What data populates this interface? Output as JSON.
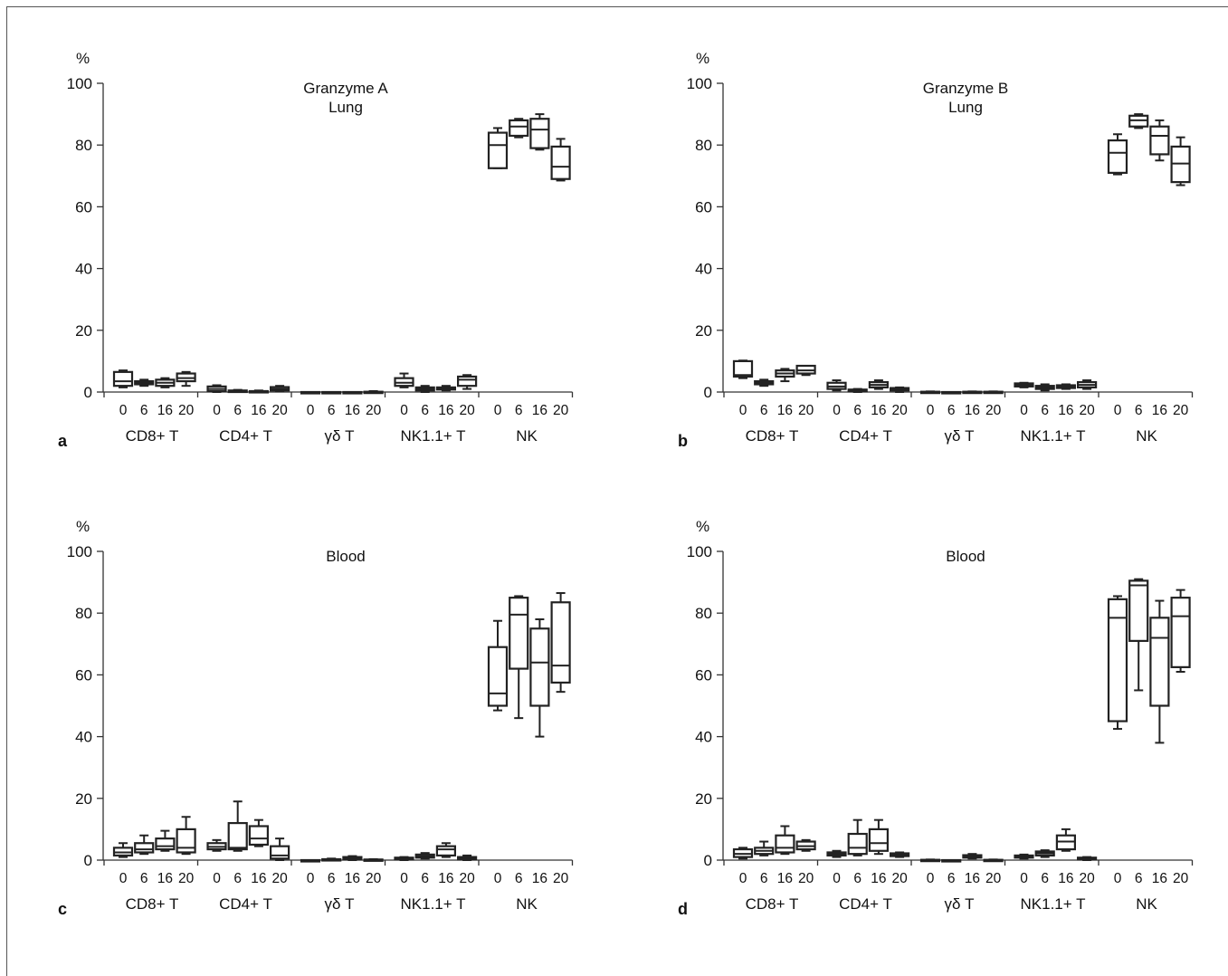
{
  "chart_data": [
    {
      "type": "box",
      "panel_letter": "a",
      "title": "Granzyme A\nLung",
      "ylabel": "%",
      "ylim": [
        0,
        100
      ],
      "yticks": [
        0,
        20,
        40,
        60,
        80,
        100
      ],
      "time_labels": [
        "0",
        "6",
        "16",
        "20"
      ],
      "groups": [
        "CD8+ T",
        "CD4+ T",
        "γδ T",
        "NK1.1+ T",
        "NK"
      ],
      "boxes": [
        [
          [
            1.5,
            2,
            3.5,
            6.5,
            7
          ],
          [
            2,
            2.5,
            3,
            3.5,
            4
          ],
          [
            1.5,
            2,
            3,
            4,
            4.5
          ],
          [
            2,
            3.5,
            4.5,
            6,
            6.5
          ]
        ],
        [
          [
            0,
            0.3,
            1,
            1.8,
            2.2
          ],
          [
            0,
            0,
            0.2,
            0.5,
            0.7
          ],
          [
            0,
            0,
            0.1,
            0.3,
            0.5
          ],
          [
            0.2,
            0.5,
            1,
            1.6,
            2
          ]
        ],
        [
          [
            0,
            0,
            0,
            0,
            0
          ],
          [
            0,
            0,
            0,
            0,
            0
          ],
          [
            0,
            0,
            0,
            0,
            0
          ],
          [
            0,
            0,
            0,
            0.1,
            0.3
          ]
        ],
        [
          [
            1.5,
            2,
            3,
            4.5,
            6
          ],
          [
            0,
            0.5,
            1,
            1.5,
            2
          ],
          [
            0.5,
            0.8,
            1.2,
            1.5,
            2
          ],
          [
            1,
            2,
            4,
            5,
            5.5
          ]
        ],
        [
          [
            72.5,
            72.5,
            80,
            84,
            85.5
          ],
          [
            82.5,
            83,
            86,
            88,
            88.5
          ],
          [
            78.5,
            79,
            85,
            88.5,
            90
          ],
          [
            68.5,
            69,
            73,
            79.5,
            82
          ]
        ]
      ]
    },
    {
      "type": "box",
      "panel_letter": "b",
      "title": "Granzyme B\nLung",
      "ylabel": "%",
      "ylim": [
        0,
        100
      ],
      "yticks": [
        0,
        20,
        40,
        60,
        80,
        100
      ],
      "time_labels": [
        "0",
        "6",
        "16",
        "20"
      ],
      "groups": [
        "CD8+ T",
        "CD4+ T",
        "γδ T",
        "NK1.1+ T",
        "NK"
      ],
      "boxes": [
        [
          [
            4.5,
            5,
            5.5,
            10,
            10.2
          ],
          [
            2,
            2.5,
            3,
            3.5,
            4
          ],
          [
            3.5,
            5,
            6,
            7,
            7.5
          ],
          [
            5.5,
            6,
            7,
            8.5,
            8.5
          ]
        ],
        [
          [
            0.5,
            1,
            1.8,
            3,
            3.8
          ],
          [
            0,
            0.2,
            0.5,
            0.8,
            1
          ],
          [
            1,
            1.5,
            2.3,
            3.2,
            3.8
          ],
          [
            0,
            0.5,
            1,
            1.3,
            1.5
          ]
        ],
        [
          [
            0,
            0,
            0,
            0.1,
            0.2
          ],
          [
            0,
            0,
            0,
            0,
            0
          ],
          [
            0,
            0,
            0,
            0.1,
            0.2
          ],
          [
            0,
            0,
            0,
            0.1,
            0.2
          ]
        ],
        [
          [
            1.5,
            1.8,
            2.3,
            2.8,
            3
          ],
          [
            0.5,
            1,
            1.5,
            2,
            2.5
          ],
          [
            1,
            1.3,
            1.8,
            2.2,
            2.5
          ],
          [
            1,
            1.5,
            2.3,
            3.2,
            3.8
          ]
        ],
        [
          [
            70.5,
            71,
            77.5,
            81.5,
            83.5
          ],
          [
            85.5,
            86,
            88,
            89.5,
            90
          ],
          [
            75,
            77,
            83,
            86,
            88
          ],
          [
            67,
            68,
            74,
            79.5,
            82.5
          ]
        ]
      ]
    },
    {
      "type": "box",
      "panel_letter": "c",
      "title": "Blood",
      "ylabel": "%",
      "ylim": [
        0,
        100
      ],
      "yticks": [
        0,
        20,
        40,
        60,
        80,
        100
      ],
      "time_labels": [
        "0",
        "6",
        "16",
        "20"
      ],
      "groups": [
        "CD8+ T",
        "CD4+ T",
        "γδ T",
        "NK1.1+ T",
        "NK"
      ],
      "boxes": [
        [
          [
            1,
            1.5,
            2.5,
            4,
            5.5
          ],
          [
            2,
            2.5,
            3.5,
            5.5,
            8
          ],
          [
            3,
            3.5,
            4.5,
            7,
            9.5
          ],
          [
            2,
            2.5,
            4,
            10,
            14
          ]
        ],
        [
          [
            3,
            3.5,
            4.3,
            5.5,
            6.5
          ],
          [
            3,
            3.5,
            4,
            12,
            19
          ],
          [
            4.5,
            5,
            7,
            11,
            13
          ],
          [
            0,
            0.5,
            1.5,
            4.5,
            7
          ]
        ],
        [
          [
            0,
            0,
            0,
            0,
            0
          ],
          [
            0,
            0,
            0.1,
            0.3,
            0.5
          ],
          [
            0,
            0.2,
            0.5,
            1,
            1.3
          ],
          [
            0,
            0,
            0.1,
            0.2,
            0.3
          ]
        ],
        [
          [
            0,
            0.2,
            0.5,
            0.8,
            1
          ],
          [
            0.5,
            0.8,
            1.2,
            1.8,
            2.3
          ],
          [
            1,
            1.5,
            3.5,
            4.5,
            5.5
          ],
          [
            0,
            0.2,
            0.5,
            1,
            1.5
          ]
        ],
        [
          [
            48.5,
            50,
            54,
            69,
            77.5
          ],
          [
            46,
            62,
            79.5,
            85,
            85.5
          ],
          [
            40,
            50,
            64,
            75,
            78
          ],
          [
            54.5,
            57.5,
            63,
            83.5,
            86.5
          ]
        ]
      ]
    },
    {
      "type": "box",
      "panel_letter": "d",
      "title": "Blood",
      "ylabel": "%",
      "ylim": [
        0,
        100
      ],
      "yticks": [
        0,
        20,
        40,
        60,
        80,
        100
      ],
      "time_labels": [
        "0",
        "6",
        "16",
        "20"
      ],
      "groups": [
        "CD8+ T",
        "CD4+ T",
        "γδ T",
        "NK1.1+ T",
        "NK"
      ],
      "boxes": [
        [
          [
            0.5,
            1,
            2,
            3.5,
            4
          ],
          [
            1.5,
            2,
            3,
            4,
            6
          ],
          [
            2,
            2.5,
            4,
            8,
            11
          ],
          [
            3,
            3.5,
            4.5,
            6,
            6.5
          ]
        ],
        [
          [
            1,
            1.5,
            2,
            2.5,
            3
          ],
          [
            1.5,
            2,
            4,
            8.5,
            13
          ],
          [
            2,
            3,
            5.5,
            10,
            13
          ],
          [
            1,
            1.3,
            1.8,
            2.2,
            2.5
          ]
        ],
        [
          [
            0,
            0,
            0,
            0.1,
            0.2
          ],
          [
            0,
            0,
            0,
            0,
            0
          ],
          [
            0.5,
            0.8,
            1.2,
            1.6,
            2
          ],
          [
            0,
            0,
            0,
            0.1,
            0.2
          ]
        ],
        [
          [
            0.5,
            0.8,
            1.2,
            1.5,
            1.8
          ],
          [
            1,
            1.5,
            2.2,
            2.8,
            3.2
          ],
          [
            3,
            3.5,
            6,
            8,
            10
          ],
          [
            0,
            0.2,
            0.5,
            0.8,
            1
          ]
        ],
        [
          [
            42.5,
            45,
            78.5,
            84.5,
            85.5
          ],
          [
            55,
            71,
            89,
            90.5,
            91
          ],
          [
            38,
            50,
            72,
            78.5,
            84
          ],
          [
            61,
            62.5,
            79,
            85,
            87.5
          ]
        ]
      ]
    }
  ]
}
